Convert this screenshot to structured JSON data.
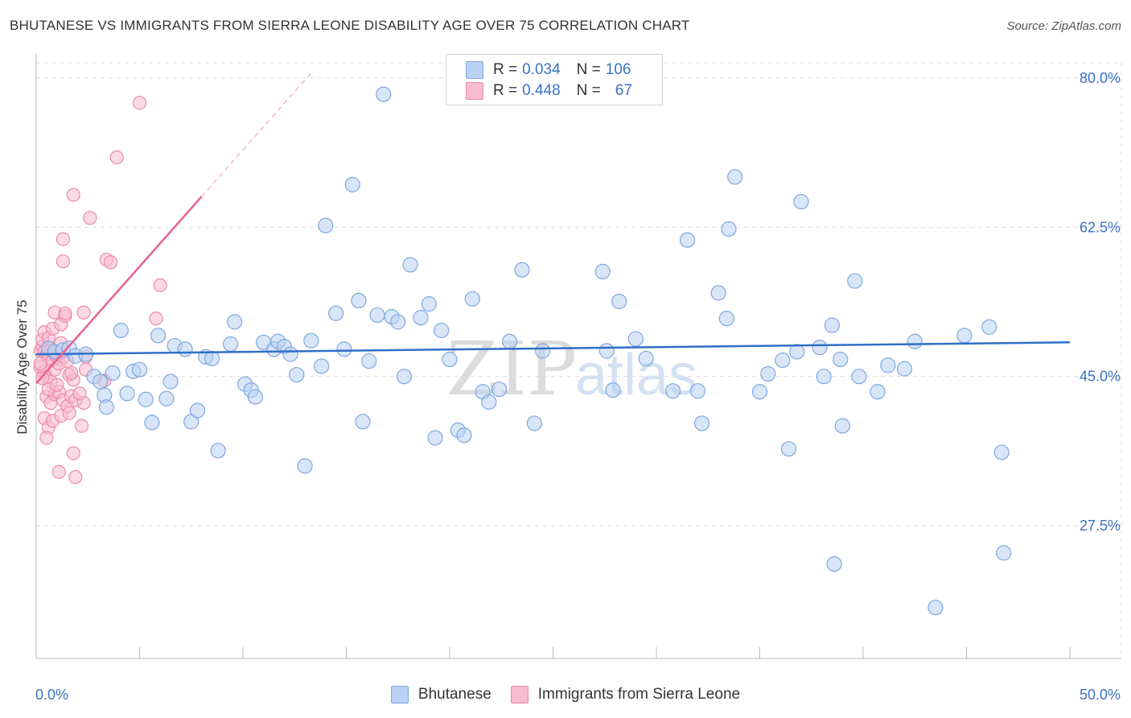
{
  "header": {
    "title": "BHUTANESE VS IMMIGRANTS FROM SIERRA LEONE DISABILITY AGE OVER 75 CORRELATION CHART",
    "source": "Source: ZipAtlas.com"
  },
  "legend": {
    "rows": [
      {
        "r_label": "R =",
        "r_value": "0.034",
        "n_label": "N =",
        "n_value": "106"
      },
      {
        "r_label": "R =",
        "r_value": "0.448",
        "n_label": "N =",
        "n_value": "67"
      }
    ]
  },
  "watermark": {
    "zip": "ZIP",
    "atlas": "atlas"
  },
  "colors": {
    "blue_fill": "#b9d1f3",
    "blue_stroke": "#7fa7df",
    "blue_line": "#2f6fc8",
    "pink_fill": "#f7bcd0",
    "pink_stroke": "#ec8bab",
    "pink_line": "#e8628e",
    "tick_label": "#3a72c4",
    "grid": "#dddddd"
  },
  "chart_data": {
    "type": "scatter",
    "title": "BHUTANESE VS IMMIGRANTS FROM SIERRA LEONE DISABILITY AGE OVER 75 CORRELATION CHART",
    "xlabel": "",
    "ylabel": "Disability Age Over 75",
    "xlim": [
      0,
      50
    ],
    "ylim": [
      10,
      82
    ],
    "x_tick_labels": [
      "0.0%",
      "50.0%"
    ],
    "y_ticks": [
      {
        "value": 27.5,
        "label": "27.5%"
      },
      {
        "value": 45.0,
        "label": "45.0%"
      },
      {
        "value": 62.5,
        "label": "62.5%"
      },
      {
        "value": 80.0,
        "label": "80.0%"
      }
    ],
    "series": [
      {
        "name": "Bhutanese",
        "R": 0.034,
        "N": 106,
        "trend": {
          "x0": 0,
          "y0": 47.6,
          "x1": 50,
          "y1": 49.0
        },
        "points": [
          [
            0.6,
            48.3
          ],
          [
            0.9,
            47.9
          ],
          [
            1.3,
            48.1
          ],
          [
            1.6,
            48.3
          ],
          [
            1.9,
            47.4
          ],
          [
            2.4,
            47.6
          ],
          [
            2.8,
            45.0
          ],
          [
            3.1,
            44.4
          ],
          [
            3.3,
            42.8
          ],
          [
            3.4,
            41.4
          ],
          [
            3.7,
            45.4
          ],
          [
            4.1,
            50.4
          ],
          [
            4.4,
            43.0
          ],
          [
            4.7,
            45.6
          ],
          [
            5.0,
            45.8
          ],
          [
            5.3,
            42.3
          ],
          [
            5.6,
            39.6
          ],
          [
            5.9,
            49.8
          ],
          [
            6.3,
            42.4
          ],
          [
            6.5,
            44.4
          ],
          [
            6.7,
            48.6
          ],
          [
            7.2,
            48.2
          ],
          [
            7.5,
            39.7
          ],
          [
            7.8,
            41.0
          ],
          [
            8.2,
            47.3
          ],
          [
            8.5,
            47.1
          ],
          [
            8.8,
            36.3
          ],
          [
            9.4,
            48.8
          ],
          [
            9.6,
            51.4
          ],
          [
            10.1,
            44.1
          ],
          [
            10.4,
            43.4
          ],
          [
            10.6,
            42.6
          ],
          [
            11.0,
            49.0
          ],
          [
            11.5,
            48.2
          ],
          [
            11.7,
            49.1
          ],
          [
            12.0,
            48.5
          ],
          [
            12.3,
            47.6
          ],
          [
            12.6,
            45.2
          ],
          [
            13.0,
            34.5
          ],
          [
            13.3,
            49.2
          ],
          [
            13.8,
            46.2
          ],
          [
            14.0,
            62.7
          ],
          [
            14.5,
            52.4
          ],
          [
            14.9,
            48.2
          ],
          [
            15.3,
            67.5
          ],
          [
            15.6,
            53.9
          ],
          [
            15.8,
            39.7
          ],
          [
            16.1,
            46.8
          ],
          [
            16.5,
            52.2
          ],
          [
            16.8,
            78.1
          ],
          [
            17.2,
            52.0
          ],
          [
            17.5,
            51.4
          ],
          [
            17.8,
            45.0
          ],
          [
            18.1,
            58.1
          ],
          [
            18.6,
            51.9
          ],
          [
            19.0,
            53.5
          ],
          [
            19.3,
            37.8
          ],
          [
            19.6,
            50.4
          ],
          [
            20.0,
            47.0
          ],
          [
            20.4,
            38.7
          ],
          [
            20.7,
            38.1
          ],
          [
            21.1,
            54.1
          ],
          [
            21.6,
            43.2
          ],
          [
            21.9,
            42.0
          ],
          [
            22.4,
            43.5
          ],
          [
            22.9,
            49.1
          ],
          [
            23.5,
            57.5
          ],
          [
            24.1,
            39.5
          ],
          [
            24.5,
            48.0
          ],
          [
            27.4,
            57.3
          ],
          [
            27.6,
            48.0
          ],
          [
            27.9,
            43.4
          ],
          [
            28.2,
            53.8
          ],
          [
            29.0,
            49.4
          ],
          [
            29.5,
            47.1
          ],
          [
            30.8,
            43.3
          ],
          [
            31.5,
            61.0
          ],
          [
            32.0,
            43.3
          ],
          [
            32.2,
            39.5
          ],
          [
            33.0,
            54.8
          ],
          [
            33.5,
            62.3
          ],
          [
            33.4,
            51.8
          ],
          [
            33.8,
            68.4
          ],
          [
            35.0,
            43.2
          ],
          [
            35.4,
            45.3
          ],
          [
            36.1,
            46.9
          ],
          [
            36.4,
            36.5
          ],
          [
            37.0,
            65.5
          ],
          [
            38.1,
            45.0
          ],
          [
            38.5,
            51.0
          ],
          [
            38.6,
            23.0
          ],
          [
            38.9,
            47.0
          ],
          [
            39.0,
            39.2
          ],
          [
            39.6,
            56.2
          ],
          [
            40.7,
            43.2
          ],
          [
            42.0,
            45.9
          ],
          [
            46.8,
            24.3
          ],
          [
            44.9,
            49.8
          ],
          [
            46.1,
            50.8
          ],
          [
            43.5,
            17.9
          ],
          [
            46.7,
            36.1
          ],
          [
            42.5,
            49.1
          ],
          [
            41.2,
            46.3
          ],
          [
            39.8,
            45.0
          ],
          [
            37.9,
            48.4
          ],
          [
            36.8,
            47.9
          ]
        ]
      },
      {
        "name": "Immigrants from Sierra Leone",
        "R": 0.448,
        "N": 67,
        "trend": {
          "x0": 0,
          "y0": 44.2,
          "x1": 8,
          "y1": 66.1
        },
        "trend_dashed": {
          "x0": 8,
          "y0": 66.1,
          "x1": 13.3,
          "y1": 80.6
        },
        "points": [
          [
            0.2,
            48.0
          ],
          [
            0.3,
            48.5
          ],
          [
            0.4,
            47.9
          ],
          [
            0.5,
            47.5
          ],
          [
            0.6,
            47.1
          ],
          [
            0.7,
            48.2
          ],
          [
            0.8,
            46.9
          ],
          [
            0.9,
            47.6
          ],
          [
            1.0,
            47.8
          ],
          [
            0.3,
            49.3
          ],
          [
            0.4,
            50.2
          ],
          [
            0.6,
            49.5
          ],
          [
            0.8,
            50.6
          ],
          [
            0.9,
            52.5
          ],
          [
            1.2,
            51.1
          ],
          [
            1.4,
            52.1
          ],
          [
            0.2,
            46.1
          ],
          [
            0.4,
            45.5
          ],
          [
            0.5,
            44.9
          ],
          [
            0.7,
            44.4
          ],
          [
            0.9,
            45.8
          ],
          [
            1.1,
            46.5
          ],
          [
            1.3,
            47.3
          ],
          [
            1.5,
            46.8
          ],
          [
            1.6,
            45.2
          ],
          [
            1.8,
            44.6
          ],
          [
            0.5,
            42.6
          ],
          [
            0.7,
            41.9
          ],
          [
            0.9,
            42.9
          ],
          [
            1.1,
            43.2
          ],
          [
            1.3,
            42.2
          ],
          [
            1.5,
            41.5
          ],
          [
            1.7,
            42.7
          ],
          [
            1.9,
            42.2
          ],
          [
            0.4,
            40.1
          ],
          [
            0.6,
            39.0
          ],
          [
            0.8,
            39.8
          ],
          [
            1.2,
            40.4
          ],
          [
            1.6,
            40.7
          ],
          [
            2.2,
            39.2
          ],
          [
            0.5,
            37.8
          ],
          [
            1.8,
            36.0
          ],
          [
            1.1,
            33.8
          ],
          [
            1.9,
            33.2
          ],
          [
            1.3,
            61.1
          ],
          [
            1.3,
            58.5
          ],
          [
            1.8,
            66.3
          ],
          [
            2.6,
            63.6
          ],
          [
            3.4,
            58.7
          ],
          [
            3.6,
            58.4
          ],
          [
            3.9,
            70.7
          ],
          [
            5.0,
            77.1
          ],
          [
            6.0,
            55.7
          ],
          [
            5.8,
            51.8
          ],
          [
            2.3,
            52.5
          ],
          [
            1.4,
            52.4
          ],
          [
            2.4,
            45.8
          ],
          [
            2.4,
            47.3
          ],
          [
            2.3,
            41.9
          ],
          [
            3.3,
            44.5
          ],
          [
            0.2,
            46.5
          ],
          [
            0.3,
            44.8
          ],
          [
            0.6,
            43.5
          ],
          [
            1.0,
            44.0
          ],
          [
            2.1,
            43.0
          ],
          [
            1.7,
            45.4
          ],
          [
            1.2,
            48.9
          ]
        ]
      }
    ]
  },
  "bottom_legend": {
    "items": [
      {
        "label": "Bhutanese"
      },
      {
        "label": "Immigrants from Sierra Leone"
      }
    ]
  }
}
